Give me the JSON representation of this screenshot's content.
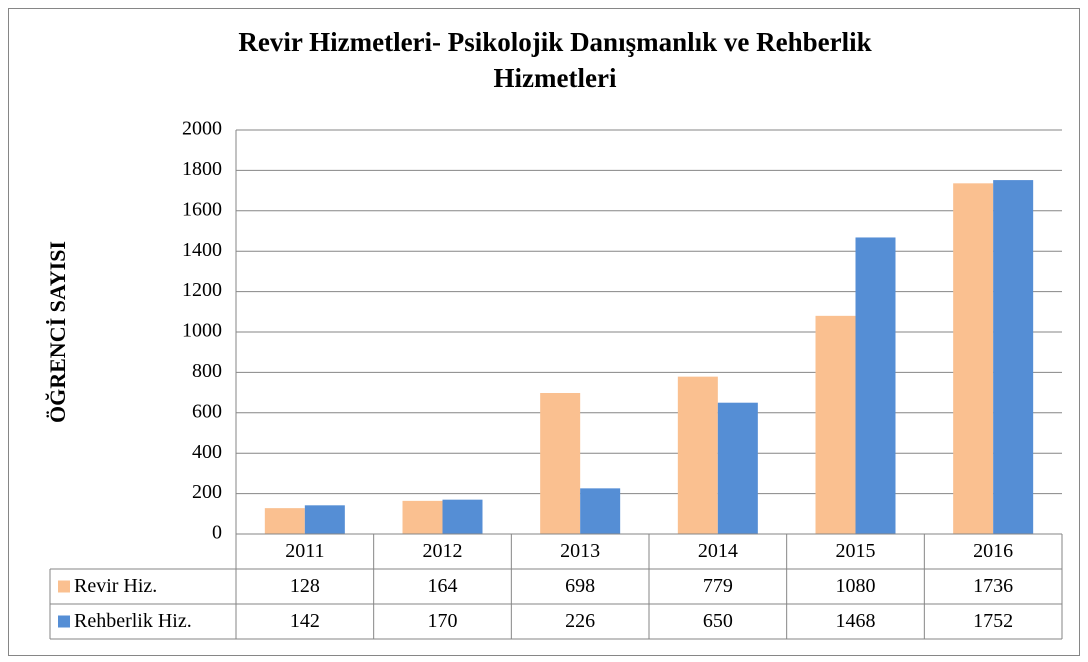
{
  "chart_data": {
    "type": "bar",
    "title": [
      "Revir Hizmetleri- Psikolojik Danışmanlık ve Rehberlik",
      "Hizmetleri"
    ],
    "y_label": "ÖĞRENCİ SAYISI",
    "categories": [
      "2011",
      "2012",
      "2013",
      "2014",
      "2015",
      "2016"
    ],
    "series": [
      {
        "name": "Revir Hiz.",
        "color": "#FAC090",
        "values": [
          128,
          164,
          698,
          779,
          1080,
          1736
        ]
      },
      {
        "name": "Rehberlik Hiz.",
        "color": "#558ED5",
        "values": [
          142,
          170,
          226,
          650,
          1468,
          1752
        ]
      }
    ],
    "ylim": [
      0,
      2000
    ],
    "yticks": [
      0,
      200,
      400,
      600,
      800,
      1000,
      1200,
      1400,
      1600,
      1800,
      2000
    ],
    "grid": true
  }
}
